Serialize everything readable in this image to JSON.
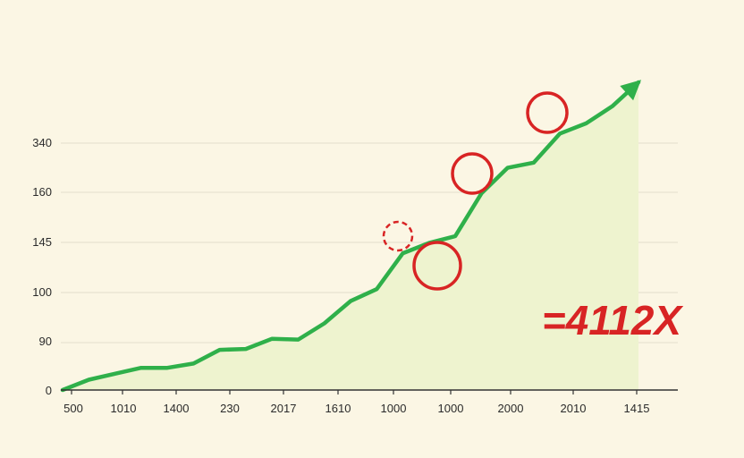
{
  "chart_data": {
    "type": "area",
    "title": "",
    "xlabel": "",
    "ylabel": "",
    "y_tick_labels": [
      "0",
      "90",
      "100",
      "145",
      "160",
      "340"
    ],
    "x_tick_labels": [
      "500",
      "1010",
      "1400",
      "230",
      "2017",
      "1610",
      "1000",
      "1000",
      "2000",
      "2010",
      "1415"
    ],
    "grid": true,
    "legend": "none",
    "series": [
      {
        "values": [
          0,
          0.06,
          0.095,
          0.13,
          0.13,
          0.155,
          0.235,
          0.24,
          0.3,
          0.295,
          0.39,
          0.52,
          0.59,
          0.8,
          0.86,
          0.9,
          1.15,
          1.3,
          1.33,
          1.5,
          1.56,
          1.66,
          1.8
        ]
      }
    ],
    "annotation": "=4112X",
    "colors": {
      "line": "#2fb04a",
      "fill": "#eef3cf",
      "circle": "#d82424",
      "background": "#fbf6e4",
      "grid": "#e3dfcd",
      "axis": "#333333"
    }
  }
}
